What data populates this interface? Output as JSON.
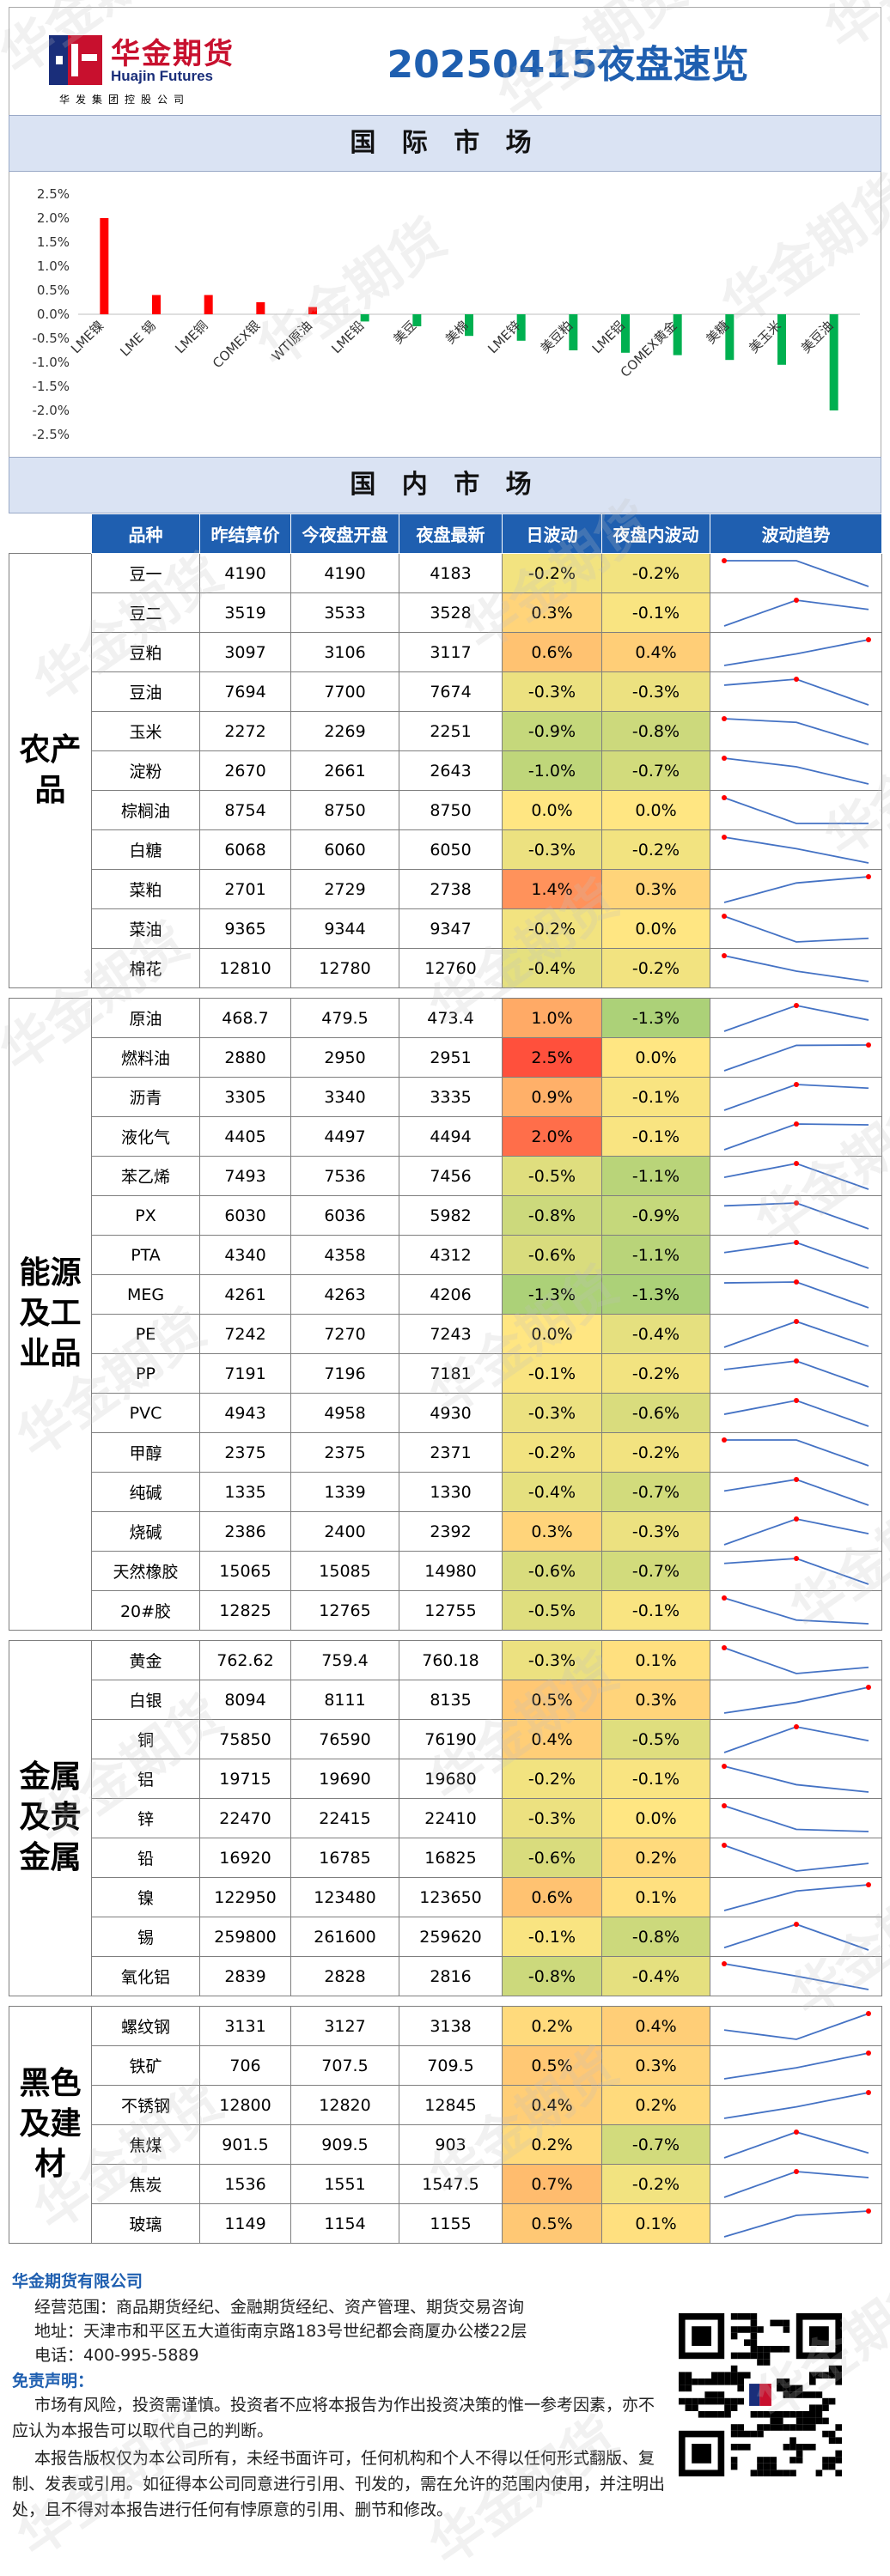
{
  "header": {
    "logo_cn": "华金期货",
    "logo_en": "Huajin Futures",
    "logo_sub": "华发集团控股公司",
    "title": "20250415夜盘速览"
  },
  "intl_section": {
    "title": "国 际 市 场"
  },
  "chart_data": {
    "type": "bar",
    "categories": [
      "LME镍",
      "LME 锡",
      "LME铜",
      "COMEX银",
      "WTI原油",
      "LME铅",
      "美豆",
      "美棉",
      "LME锌",
      "美豆粕",
      "LME铝",
      "COMEX黄金",
      "美糖",
      "美玉米",
      "美豆油"
    ],
    "values": [
      2.0,
      0.4,
      0.4,
      0.25,
      0.15,
      -0.15,
      -0.25,
      -0.45,
      -0.55,
      -0.75,
      -0.8,
      -0.85,
      -0.95,
      -1.05,
      -2.0
    ],
    "ylim": [
      -2.5,
      2.5
    ],
    "yticks": [
      "2.5%",
      "2.0%",
      "1.5%",
      "1.0%",
      "0.5%",
      "0.0%",
      "-0.5%",
      "-1.0%",
      "-1.5%",
      "-2.0%",
      "-2.5%"
    ],
    "colors": {
      "positive": "#ff0000",
      "negative": "#00b050"
    }
  },
  "domestic_section": {
    "title": "国 内 市 场"
  },
  "table": {
    "headers": [
      "品种",
      "昨结算价",
      "今夜盘开盘",
      "夜盘最新",
      "日波动",
      "夜盘内波动",
      "波动趋势"
    ],
    "groups": [
      {
        "name": "农产品",
        "rows": [
          [
            "豆一",
            "4190",
            "4190",
            "4183",
            "-0.2%",
            "-0.2%"
          ],
          [
            "豆二",
            "3519",
            "3533",
            "3528",
            "0.3%",
            "-0.1%"
          ],
          [
            "豆粕",
            "3097",
            "3106",
            "3117",
            "0.6%",
            "0.4%"
          ],
          [
            "豆油",
            "7694",
            "7700",
            "7674",
            "-0.3%",
            "-0.3%"
          ],
          [
            "玉米",
            "2272",
            "2269",
            "2251",
            "-0.9%",
            "-0.8%"
          ],
          [
            "淀粉",
            "2670",
            "2661",
            "2643",
            "-1.0%",
            "-0.7%"
          ],
          [
            "棕榈油",
            "8754",
            "8750",
            "8750",
            "0.0%",
            "0.0%"
          ],
          [
            "白糖",
            "6068",
            "6060",
            "6050",
            "-0.3%",
            "-0.2%"
          ],
          [
            "菜粕",
            "2701",
            "2729",
            "2738",
            "1.4%",
            "0.3%"
          ],
          [
            "菜油",
            "9365",
            "9344",
            "9347",
            "-0.2%",
            "0.0%"
          ],
          [
            "棉花",
            "12810",
            "12780",
            "12760",
            "-0.4%",
            "-0.2%"
          ]
        ]
      },
      {
        "name": "能源及工业品",
        "rows": [
          [
            "原油",
            "468.7",
            "479.5",
            "473.4",
            "1.0%",
            "-1.3%"
          ],
          [
            "燃料油",
            "2880",
            "2950",
            "2951",
            "2.5%",
            "0.0%"
          ],
          [
            "沥青",
            "3305",
            "3340",
            "3335",
            "0.9%",
            "-0.1%"
          ],
          [
            "液化气",
            "4405",
            "4497",
            "4494",
            "2.0%",
            "-0.1%"
          ],
          [
            "苯乙烯",
            "7493",
            "7536",
            "7456",
            "-0.5%",
            "-1.1%"
          ],
          [
            "PX",
            "6030",
            "6036",
            "5982",
            "-0.8%",
            "-0.9%"
          ],
          [
            "PTA",
            "4340",
            "4358",
            "4312",
            "-0.6%",
            "-1.1%"
          ],
          [
            "MEG",
            "4261",
            "4263",
            "4206",
            "-1.3%",
            "-1.3%"
          ],
          [
            "PE",
            "7242",
            "7270",
            "7243",
            "0.0%",
            "-0.4%"
          ],
          [
            "PP",
            "7191",
            "7196",
            "7181",
            "-0.1%",
            "-0.2%"
          ],
          [
            "PVC",
            "4943",
            "4958",
            "4930",
            "-0.3%",
            "-0.6%"
          ],
          [
            "甲醇",
            "2375",
            "2375",
            "2371",
            "-0.2%",
            "-0.2%"
          ],
          [
            "纯碱",
            "1335",
            "1339",
            "1330",
            "-0.4%",
            "-0.7%"
          ],
          [
            "烧碱",
            "2386",
            "2400",
            "2392",
            "0.3%",
            "-0.3%"
          ],
          [
            "天然橡胶",
            "15065",
            "15085",
            "14980",
            "-0.6%",
            "-0.7%"
          ],
          [
            "20#胶",
            "12825",
            "12765",
            "12755",
            "-0.5%",
            "-0.1%"
          ]
        ]
      },
      {
        "name": "金属及贵金属",
        "rows": [
          [
            "黄金",
            "762.62",
            "759.4",
            "760.18",
            "-0.3%",
            "0.1%"
          ],
          [
            "白银",
            "8094",
            "8111",
            "8135",
            "0.5%",
            "0.3%"
          ],
          [
            "铜",
            "75850",
            "76590",
            "76190",
            "0.4%",
            "-0.5%"
          ],
          [
            "铝",
            "19715",
            "19690",
            "19680",
            "-0.2%",
            "-0.1%"
          ],
          [
            "锌",
            "22470",
            "22415",
            "22410",
            "-0.3%",
            "0.0%"
          ],
          [
            "铅",
            "16920",
            "16785",
            "16825",
            "-0.6%",
            "0.2%"
          ],
          [
            "镍",
            "122950",
            "123480",
            "123650",
            "0.6%",
            "0.1%"
          ],
          [
            "锡",
            "259800",
            "261600",
            "259620",
            "-0.1%",
            "-0.8%"
          ],
          [
            "氧化铝",
            "2839",
            "2828",
            "2816",
            "-0.8%",
            "-0.4%"
          ]
        ]
      },
      {
        "name": "黑色及建材",
        "rows": [
          [
            "螺纹钢",
            "3131",
            "3127",
            "3138",
            "0.2%",
            "0.4%"
          ],
          [
            "铁矿",
            "706",
            "707.5",
            "709.5",
            "0.5%",
            "0.3%"
          ],
          [
            "不锈钢",
            "12800",
            "12820",
            "12845",
            "0.4%",
            "0.2%"
          ],
          [
            "焦煤",
            "901.5",
            "909.5",
            "903",
            "0.2%",
            "-0.7%"
          ],
          [
            "焦炭",
            "1536",
            "1551",
            "1547.5",
            "0.7%",
            "-0.2%"
          ],
          [
            "玻璃",
            "1149",
            "1154",
            "1155",
            "0.5%",
            "0.1%"
          ]
        ]
      }
    ]
  },
  "footer": {
    "company": "华金期货有限公司",
    "scope": "经营范围：商品期货经纪、金融期货经纪、资产管理、期货交易咨询",
    "address": "地址：天津市和平区五大道街南京路183号世纪都会商厦办公楼22层",
    "phone": "电话：400-995-5889",
    "disclaimer_title": "免责声明：",
    "para1": "市场有风险，投资需谨慎。投资者不应将本报告为作出投资决策的惟一参考因素，亦不应认为本报告可以取代自己的判断。",
    "para2": "本报告版权仅为本公司所有，未经书面许可，任何机构和个人不得以任何形式翻版、复制、发表或引用。如征得本公司同意进行引用、刊发的，需在允许的范围内使用，并注明出处，且不得对本报告进行任何有悖原意的引用、删节和修改。"
  },
  "watermark": "华金期货",
  "colors": {
    "brand_blue": "#1f5fb0",
    "brand_red": "#c8102e",
    "band_bg": "#dae3f3",
    "header_bg": "#1f5fb0"
  }
}
